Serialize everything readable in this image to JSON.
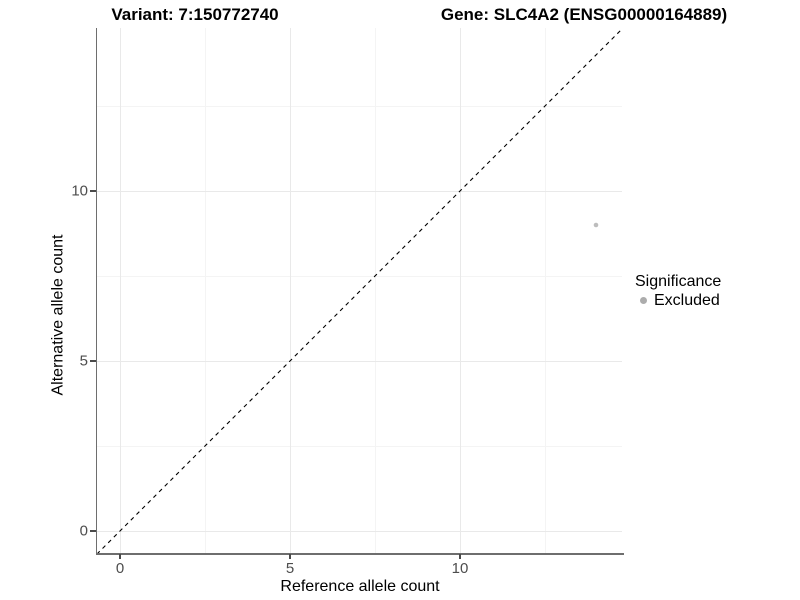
{
  "titles": {
    "variant": "Variant: 7:150772740",
    "gene": "Gene: SLC4A2 (ENSG00000164889)"
  },
  "chart_data": {
    "type": "scatter",
    "title": "Variant: 7:150772740  |  Gene: SLC4A2 (ENSG00000164889)",
    "xlabel": "Reference allele count",
    "ylabel": "Alternative allele count",
    "xlim": [
      -0.68,
      14.85
    ],
    "ylim": [
      -0.65,
      14.85
    ],
    "x_ticks": [
      {
        "label": "0",
        "value": 0
      },
      {
        "label": "5",
        "value": 5
      },
      {
        "label": "10",
        "value": 10
      }
    ],
    "y_ticks": [
      {
        "label": "0",
        "value": 0
      },
      {
        "label": "5",
        "value": 5
      },
      {
        "label": "10",
        "value": 10
      }
    ],
    "x_minor_ticks": [
      2.5,
      7.5,
      12.5
    ],
    "y_minor_ticks": [
      2.5,
      7.5,
      12.5
    ],
    "grid": "major+minor",
    "series": [
      {
        "name": "Excluded",
        "color": "#bdbdbd",
        "point_radius": 2.3,
        "points": [
          {
            "x": 14,
            "y": 9
          }
        ]
      }
    ],
    "reference_line": {
      "kind": "identity",
      "style": "dashed",
      "color": "#000000"
    },
    "legend": {
      "position": "right",
      "title": "Significance",
      "items": [
        {
          "label": "Excluded",
          "color": "#acacac"
        }
      ]
    }
  }
}
